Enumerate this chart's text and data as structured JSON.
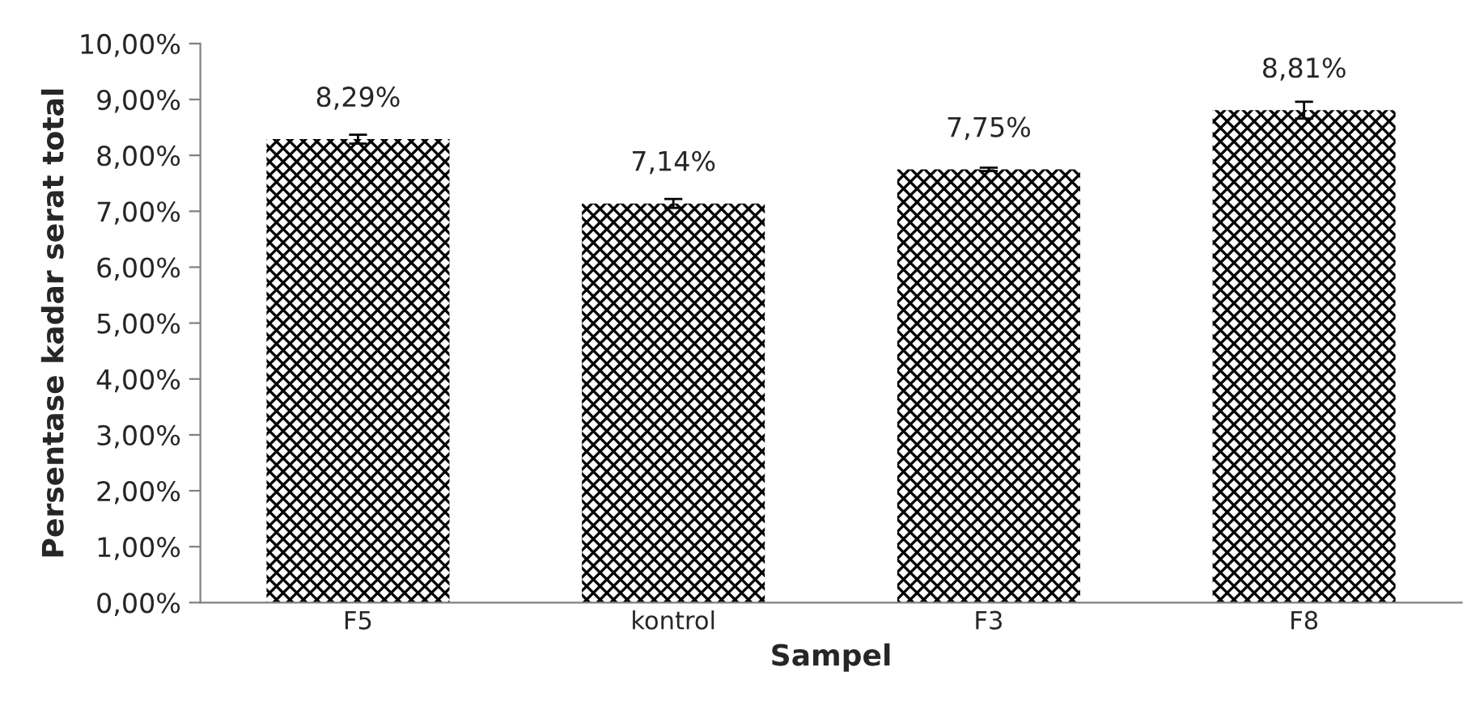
{
  "chart_data": {
    "type": "bar",
    "xlabel": "Sampel",
    "ylabel": "Persentase kadar serat total",
    "categories": [
      "F5",
      "kontrol",
      "F3",
      "F8"
    ],
    "values": [
      8.29,
      7.14,
      7.75,
      8.81
    ],
    "errors": [
      0.08,
      0.08,
      0.03,
      0.15
    ],
    "value_labels": [
      "8,29%",
      "7,14%",
      "7,75%",
      "8,81%"
    ],
    "color": "#000000",
    "ylim": [
      0,
      10
    ],
    "yticks": [
      {
        "value": 0,
        "label": "0,00%"
      },
      {
        "value": 1,
        "label": "1,00%"
      },
      {
        "value": 2,
        "label": "2,00%"
      },
      {
        "value": 3,
        "label": "3,00%"
      },
      {
        "value": 4,
        "label": "4,00%"
      },
      {
        "value": 5,
        "label": "5,00%"
      },
      {
        "value": 6,
        "label": "6,00%"
      },
      {
        "value": 7,
        "label": "7,00%"
      },
      {
        "value": 8,
        "label": "8,00%"
      },
      {
        "value": 9,
        "label": "9,00%"
      },
      {
        "value": 10,
        "label": "10,00%"
      }
    ],
    "grid": false,
    "legend": false
  }
}
